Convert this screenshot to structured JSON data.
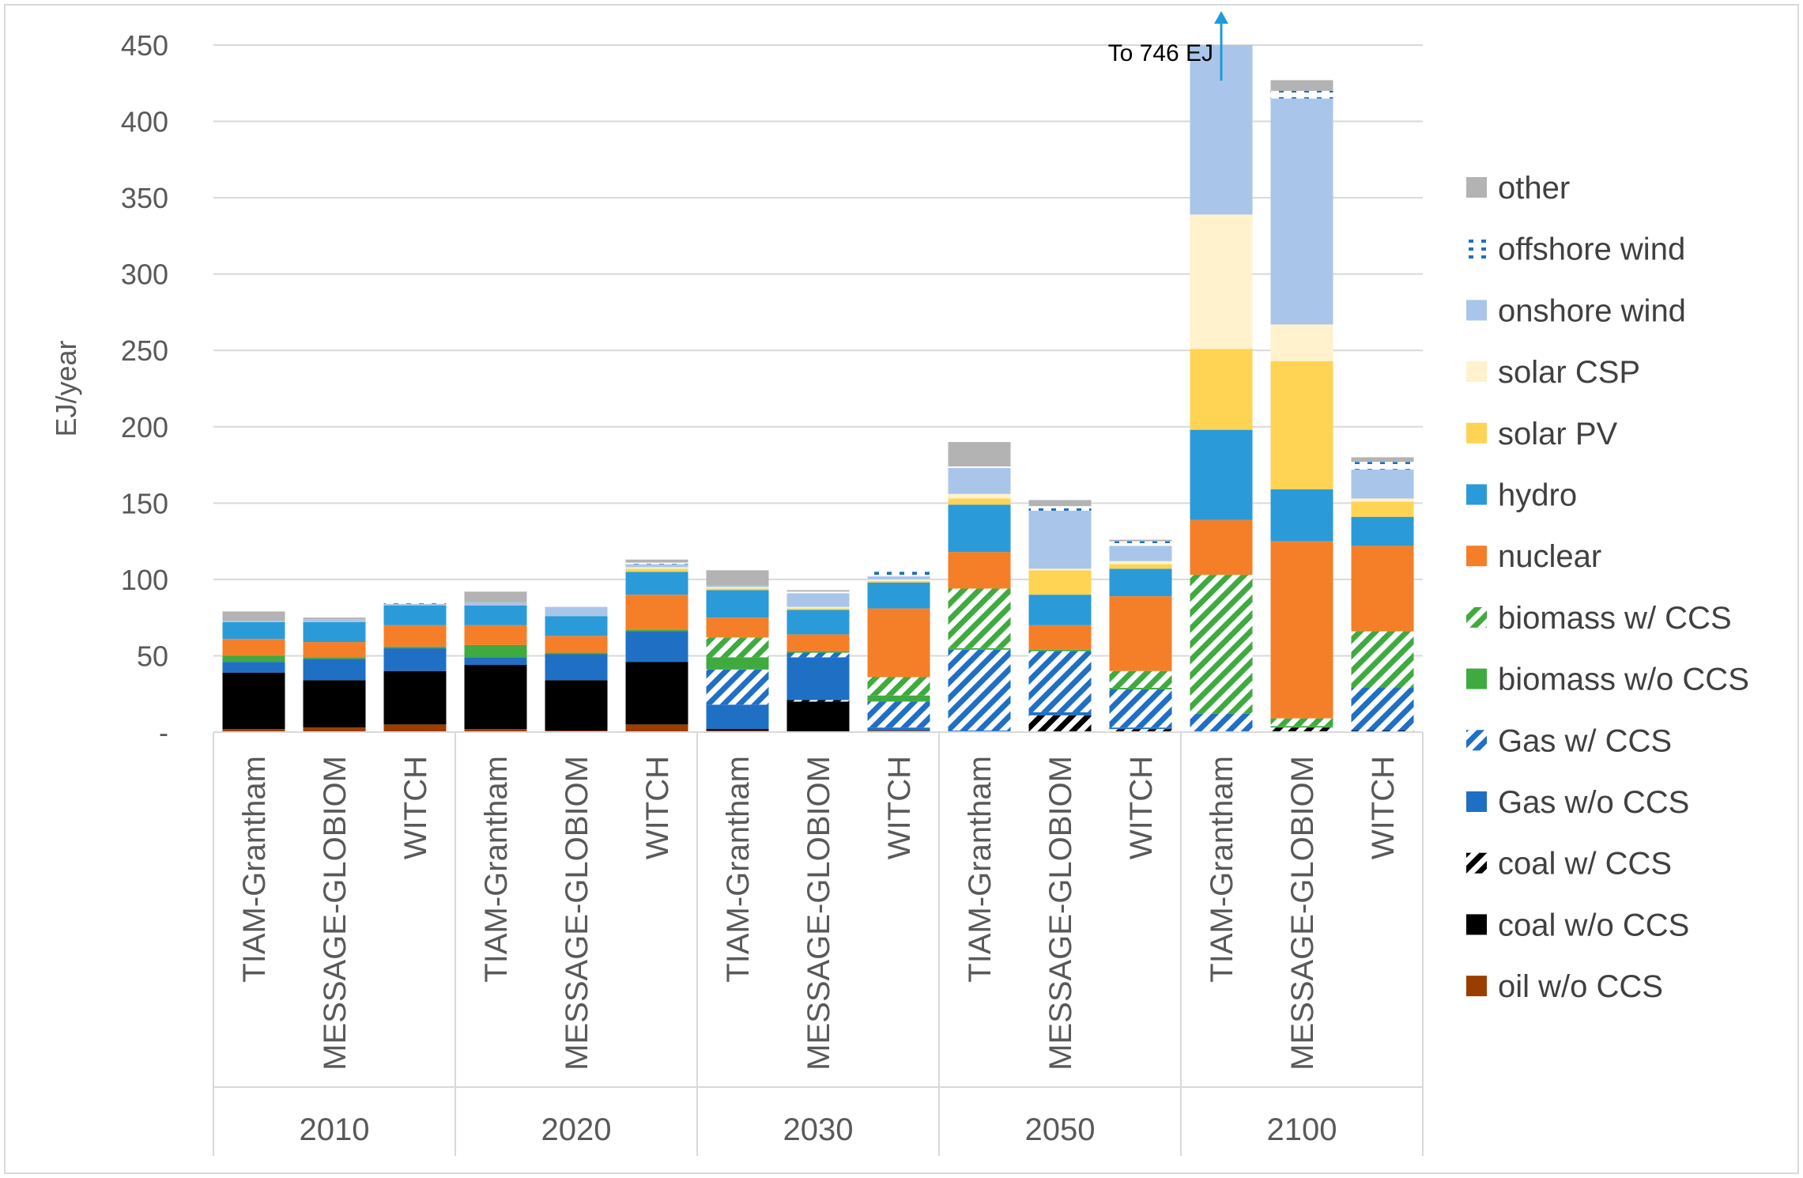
{
  "chart_data": {
    "type": "bar",
    "stacked": true,
    "ylabel": "EJ/year",
    "ylim": [
      0,
      450
    ],
    "yticks": [
      {
        "value": 0,
        "label": "-"
      },
      {
        "value": 50,
        "label": "50"
      },
      {
        "value": 100,
        "label": "100"
      },
      {
        "value": 150,
        "label": "150"
      },
      {
        "value": 200,
        "label": "200"
      },
      {
        "value": 250,
        "label": "250"
      },
      {
        "value": 300,
        "label": "300"
      },
      {
        "value": 350,
        "label": "350"
      },
      {
        "value": 400,
        "label": "400"
      },
      {
        "value": 450,
        "label": "450"
      }
    ],
    "groups": [
      "2010",
      "2020",
      "2030",
      "2050",
      "2100"
    ],
    "models": [
      "TIAM-Grantham",
      "MESSAGE-GLOBIOM",
      "WITCH"
    ],
    "categories": [
      "2010 TIAM-Grantham",
      "2010 MESSAGE-GLOBIOM",
      "2010 WITCH",
      "2020 TIAM-Grantham",
      "2020 MESSAGE-GLOBIOM",
      "2020 WITCH",
      "2030 TIAM-Grantham",
      "2030 MESSAGE-GLOBIOM",
      "2030 WITCH",
      "2050 TIAM-Grantham",
      "2050 MESSAGE-GLOBIOM",
      "2050 WITCH",
      "2100 TIAM-Grantham",
      "2100 MESSAGE-GLOBIOM",
      "2100 WITCH"
    ],
    "series": [
      {
        "name": "oil w/o CCS",
        "color": "#9c3d00",
        "pattern": "solid",
        "values": [
          2,
          3,
          5,
          2,
          1,
          5,
          1,
          0,
          1,
          0,
          0,
          0,
          0,
          0,
          0
        ]
      },
      {
        "name": "coal w/o CCS",
        "color": "#000000",
        "pattern": "solid",
        "values": [
          37,
          31,
          35,
          42,
          33,
          41,
          1,
          20,
          0,
          0,
          0,
          0,
          0,
          0,
          0
        ]
      },
      {
        "name": "coal w/ CCS",
        "color": "#000000",
        "pattern": "diag",
        "values": [
          0,
          0,
          0,
          0,
          0,
          0,
          0,
          1,
          0,
          0,
          11,
          2,
          0,
          3,
          1
        ]
      },
      {
        "name": "Gas w/o CCS",
        "color": "#1f6fc5",
        "pattern": "solid",
        "values": [
          7,
          14,
          15,
          5,
          17,
          20,
          16,
          28,
          2,
          1,
          2,
          1,
          0,
          0,
          0
        ]
      },
      {
        "name": "Gas w/ CCS",
        "color": "#1f6fc5",
        "pattern": "diag",
        "values": [
          0,
          0,
          0,
          0,
          0,
          0,
          23,
          3,
          17,
          53,
          40,
          25,
          12,
          0,
          28
        ]
      },
      {
        "name": "biomass w/o CCS",
        "color": "#3faa3f",
        "pattern": "solid",
        "values": [
          4,
          1,
          1,
          8,
          1,
          1,
          8,
          1,
          4,
          1,
          1,
          1,
          0,
          1,
          0
        ]
      },
      {
        "name": "biomass w/ CCS",
        "color": "#3faa3f",
        "pattern": "diag",
        "values": [
          0,
          0,
          0,
          0,
          0,
          0,
          13,
          0,
          12,
          39,
          0,
          11,
          91,
          5,
          37
        ]
      },
      {
        "name": "nuclear",
        "color": "#f57f29",
        "pattern": "solid",
        "values": [
          11,
          10,
          14,
          13,
          11,
          23,
          13,
          11,
          45,
          24,
          16,
          49,
          36,
          116,
          56
        ]
      },
      {
        "name": "hydro",
        "color": "#2a9bd8",
        "pattern": "solid",
        "values": [
          11,
          13,
          13,
          13,
          13,
          15,
          18,
          16,
          17,
          31,
          20,
          18,
          59,
          34,
          19
        ]
      },
      {
        "name": "solar PV",
        "color": "#ffd454",
        "pattern": "solid",
        "values": [
          0,
          0,
          0,
          0,
          0,
          2,
          1,
          1,
          1,
          4,
          16,
          3,
          53,
          84,
          10
        ]
      },
      {
        "name": "solar CSP",
        "color": "#fff2cc",
        "pattern": "solid",
        "values": [
          0,
          0,
          0,
          0,
          0,
          1,
          1,
          1,
          1,
          3,
          1,
          2,
          88,
          24,
          2
        ]
      },
      {
        "name": "onshore wind",
        "color": "#a9c6ea",
        "pattern": "solid",
        "values": [
          1,
          2,
          1,
          2,
          6,
          2,
          1,
          9,
          2,
          17,
          38,
          10,
          113,
          148,
          19
        ]
      },
      {
        "name": "offshore wind",
        "color": "#1f6fc5",
        "pattern": "dots",
        "values": [
          0,
          0,
          1,
          0,
          0,
          1,
          0,
          1,
          3,
          1,
          3,
          3,
          0,
          5,
          5
        ]
      },
      {
        "name": "other",
        "color": "#b3b3b3",
        "pattern": "solid",
        "values": [
          6,
          1,
          0,
          7,
          0,
          2,
          10,
          1,
          0,
          16,
          4,
          1,
          0,
          7,
          3
        ]
      }
    ],
    "legend_position": "right",
    "legend_order": [
      "other",
      "offshore wind",
      "onshore wind",
      "solar CSP",
      "solar PV",
      "hydro",
      "nuclear",
      "biomass w/ CCS",
      "biomass w/o CCS",
      "Gas w/ CCS",
      "Gas w/o CCS",
      "coal w/ CCS",
      "coal w/o CCS",
      "oil w/o CCS"
    ],
    "annotation": {
      "text": "To 746 EJ",
      "target_category": "2100 TIAM-Grantham",
      "total_value": 746,
      "arrow": true
    },
    "grid": true
  }
}
